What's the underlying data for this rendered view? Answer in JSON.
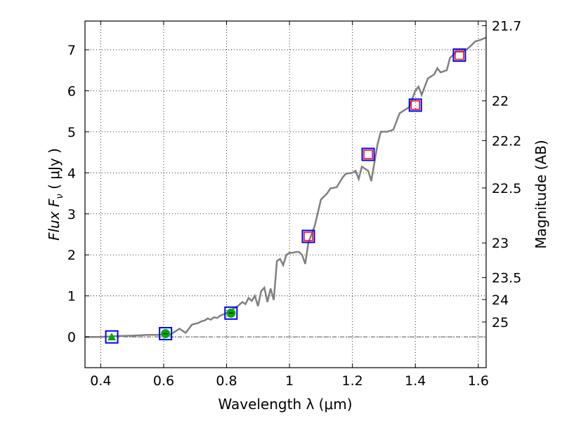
{
  "chart_data": {
    "type": "line",
    "title": "",
    "xlabel": "Wavelength  λ (μm)",
    "ylabel": "Flux  F",
    "ylabel_sub": "ν",
    "ylabel_unit": "  ( μJy )",
    "y2label": "Magnitude (AB)",
    "xlim": [
      0.35,
      1.625
    ],
    "ylim": [
      -0.75,
      7.7
    ],
    "grid": true,
    "x_ticks": [
      0.4,
      0.6,
      0.8,
      1.0,
      1.2,
      1.4,
      1.6
    ],
    "x_tick_labels": [
      "0.4",
      "0.6",
      "0.8",
      "1",
      "1.2",
      "1.4",
      "1.6"
    ],
    "y_ticks": [
      0,
      1,
      2,
      3,
      4,
      5,
      6,
      7
    ],
    "y_tick_labels": [
      "0",
      "1",
      "2",
      "3",
      "4",
      "5",
      "6",
      "7"
    ],
    "y2_ticks": [
      {
        "label": "21.7",
        "mag": 21.7
      },
      {
        "label": "22",
        "mag": 22.0
      },
      {
        "label": "22.2",
        "mag": 22.2
      },
      {
        "label": "22.5",
        "mag": 22.5
      },
      {
        "label": "23",
        "mag": 23.0
      },
      {
        "label": "23.5",
        "mag": 23.5
      },
      {
        "label": "24",
        "mag": 24.0
      },
      {
        "label": "25",
        "mag": 25.0
      }
    ],
    "colors": {
      "spectrum": "#808080",
      "observed_box": "#0000ff",
      "model_box": "#ff0000",
      "green_marker": "#00aa00",
      "zero_line": "#555555"
    },
    "series": [
      {
        "name": "model spectrum",
        "x": [
          0.35,
          0.4,
          0.45,
          0.5,
          0.55,
          0.58,
          0.6,
          0.62,
          0.64,
          0.65,
          0.66,
          0.67,
          0.68,
          0.69,
          0.7,
          0.71,
          0.72,
          0.73,
          0.74,
          0.75,
          0.76,
          0.77,
          0.78,
          0.79,
          0.8,
          0.81,
          0.82,
          0.83,
          0.84,
          0.85,
          0.86,
          0.87,
          0.88,
          0.89,
          0.9,
          0.91,
          0.92,
          0.93,
          0.94,
          0.95,
          0.96,
          0.97,
          0.98,
          0.99,
          1.0,
          1.01,
          1.02,
          1.03,
          1.04,
          1.05,
          1.06,
          1.08,
          1.1,
          1.12,
          1.13,
          1.15,
          1.17,
          1.18,
          1.2,
          1.21,
          1.22,
          1.23,
          1.25,
          1.26,
          1.28,
          1.29,
          1.31,
          1.33,
          1.35,
          1.36,
          1.38,
          1.4,
          1.41,
          1.42,
          1.44,
          1.46,
          1.47,
          1.48,
          1.5,
          1.51,
          1.53,
          1.55,
          1.57,
          1.59,
          1.61,
          1.625
        ],
        "y": [
          0.0,
          0.0,
          0.02,
          0.03,
          0.05,
          0.05,
          0.06,
          0.05,
          0.15,
          0.2,
          0.15,
          0.1,
          0.2,
          0.3,
          0.32,
          0.34,
          0.38,
          0.4,
          0.45,
          0.42,
          0.48,
          0.46,
          0.52,
          0.55,
          0.58,
          0.6,
          0.68,
          0.72,
          0.78,
          0.85,
          0.8,
          0.95,
          0.88,
          1.0,
          0.75,
          1.12,
          1.2,
          0.85,
          1.18,
          0.9,
          1.85,
          1.9,
          1.75,
          2.0,
          2.05,
          2.05,
          2.07,
          2.07,
          2.0,
          1.78,
          2.3,
          2.7,
          3.35,
          3.5,
          3.62,
          3.65,
          3.9,
          3.98,
          4.0,
          4.05,
          3.85,
          4.15,
          4.05,
          3.8,
          4.7,
          5.0,
          5.0,
          5.05,
          5.45,
          5.5,
          5.6,
          6.0,
          6.1,
          5.9,
          6.3,
          6.4,
          6.55,
          6.45,
          6.5,
          6.8,
          6.95,
          6.95,
          7.05,
          7.2,
          7.25,
          7.3
        ]
      },
      {
        "name": "observed photometry (blue squares)",
        "x": [
          0.435,
          0.606,
          0.814,
          1.06,
          1.25,
          1.4,
          1.54
        ],
        "y": [
          0.0,
          0.08,
          0.58,
          2.45,
          4.45,
          5.65,
          6.87
        ]
      },
      {
        "name": "model photometry (red squares)",
        "x": [
          1.06,
          1.25,
          1.4,
          1.54
        ],
        "y": [
          2.45,
          4.45,
          5.65,
          6.87
        ]
      },
      {
        "name": "green markers",
        "x": [
          0.435,
          0.606,
          0.814
        ],
        "y": [
          0.0,
          0.08,
          0.58
        ],
        "shapes": [
          "triangle",
          "circle",
          "circle"
        ]
      }
    ]
  }
}
